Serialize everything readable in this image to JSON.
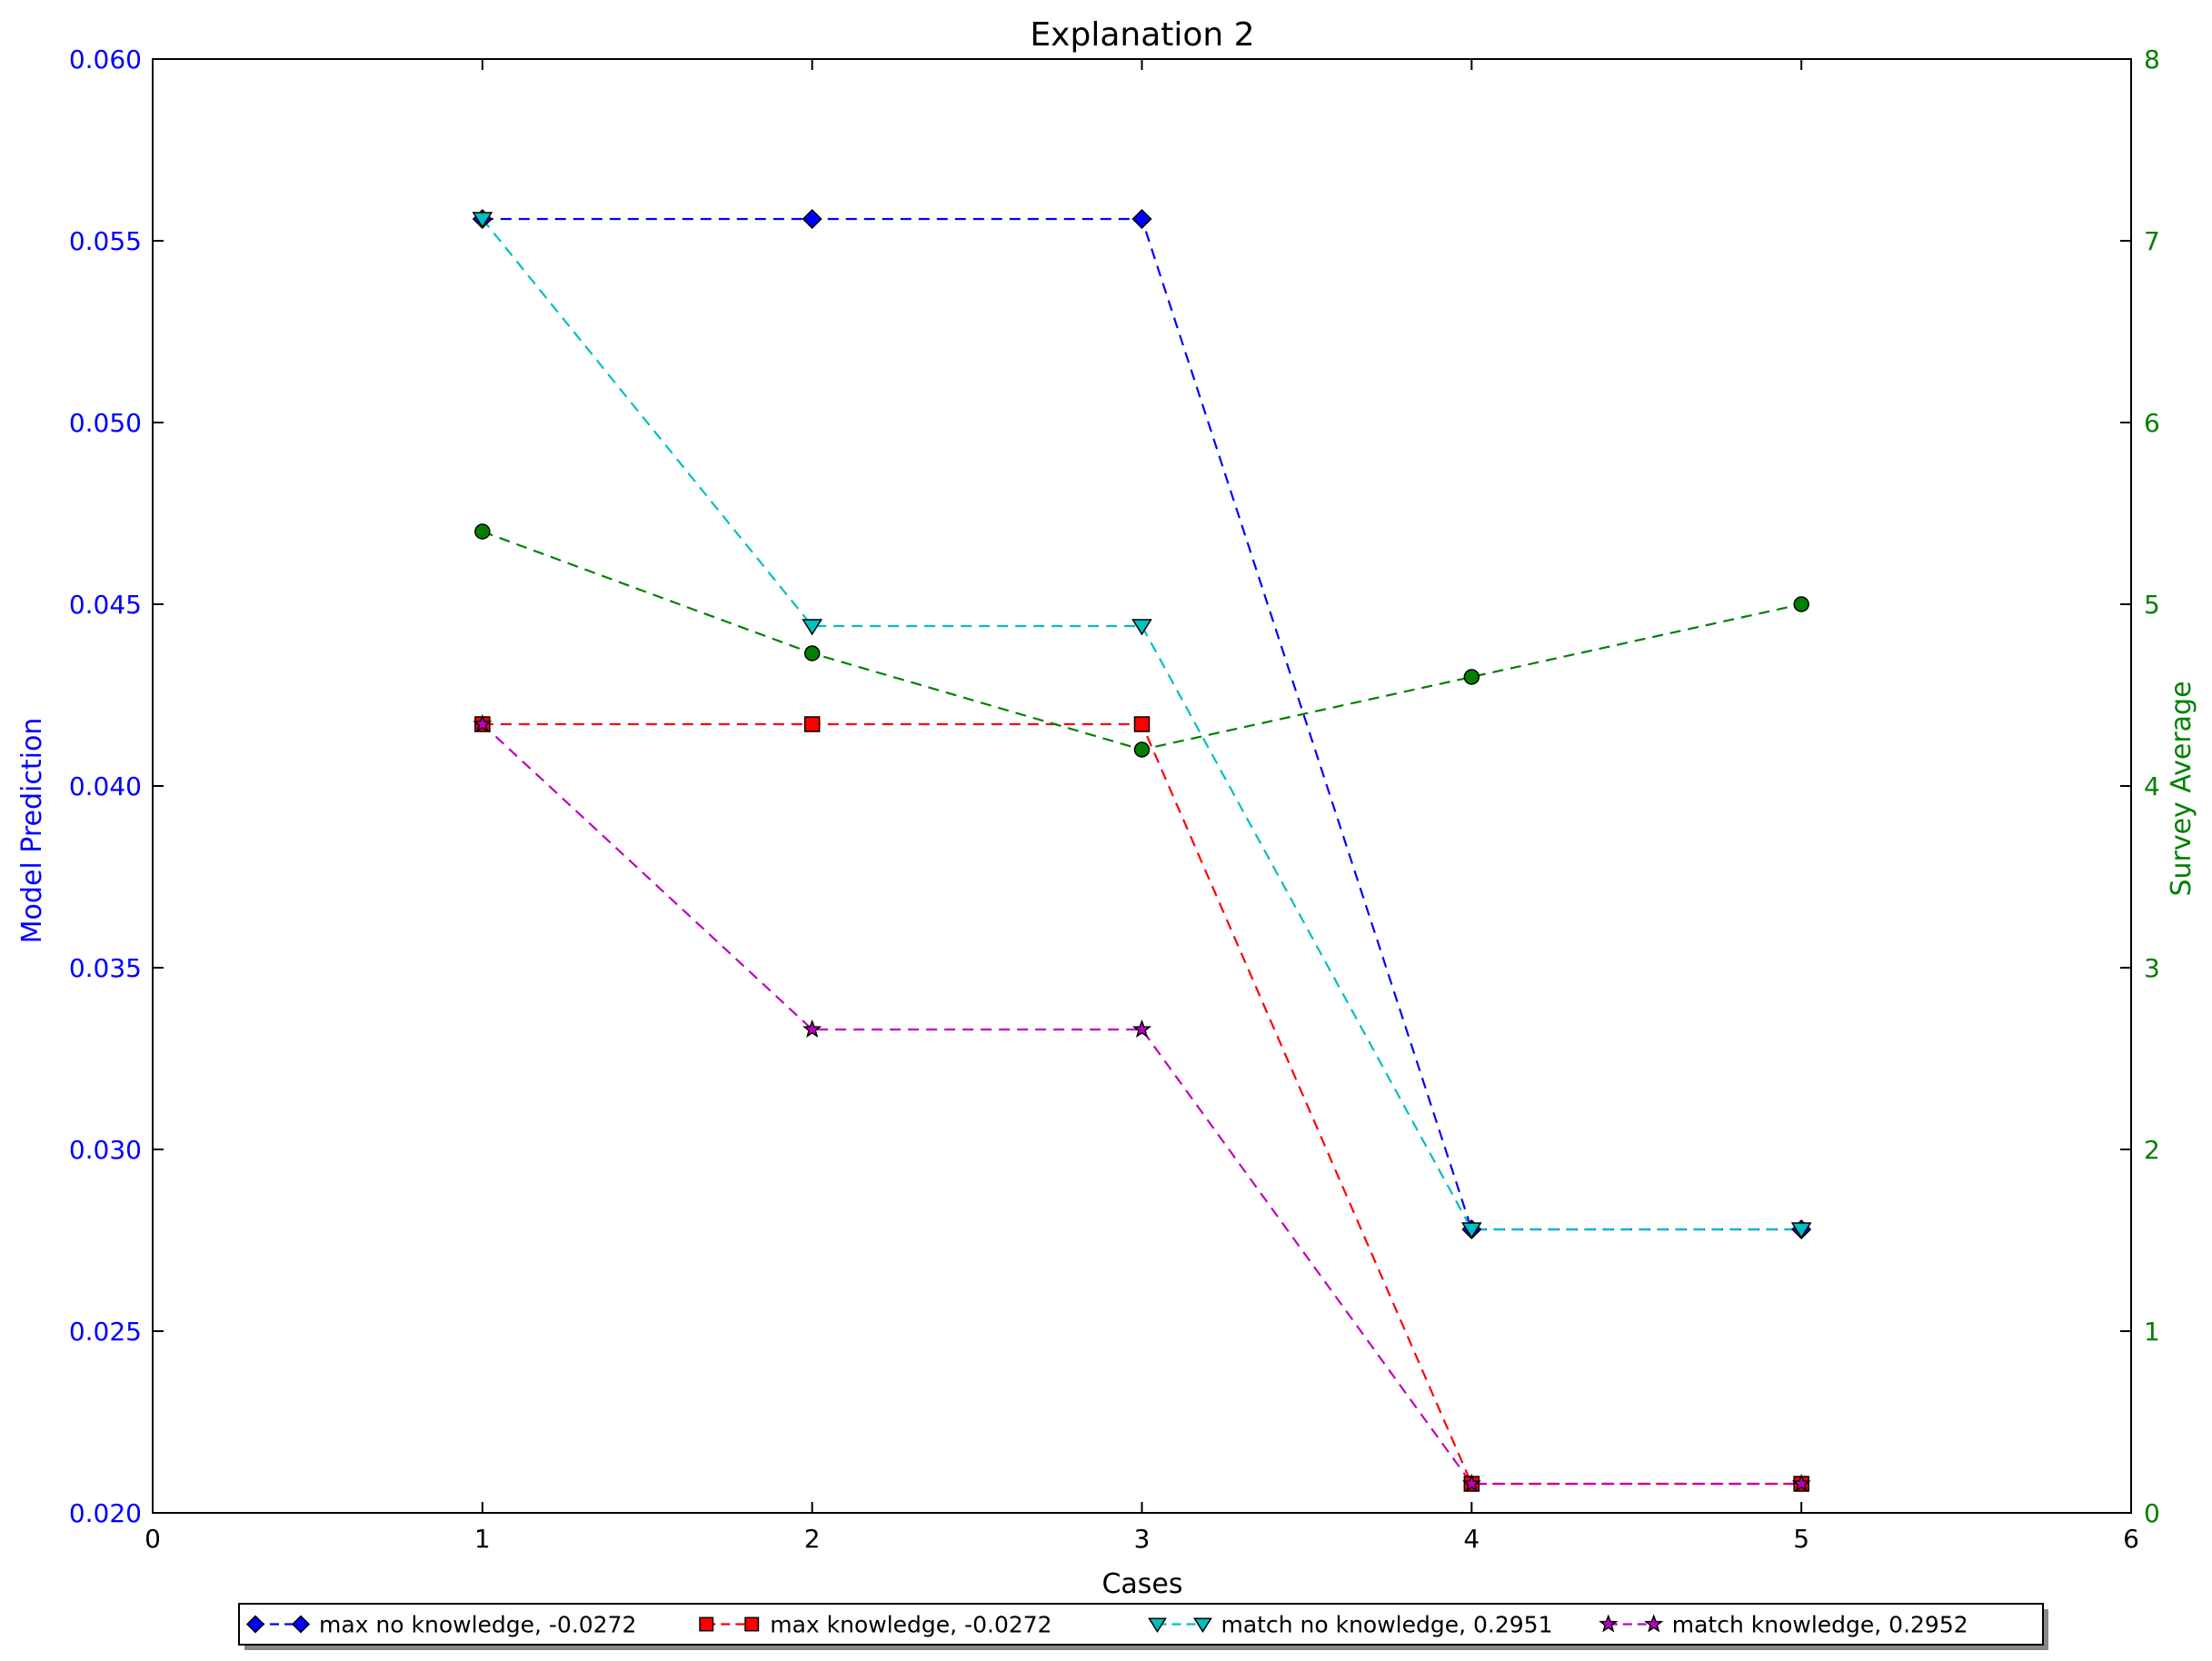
{
  "chart_data": {
    "type": "line",
    "title": "Explanation 2",
    "xlabel": "Cases",
    "ylabel_left": "Model Prediction",
    "ylabel_right": "Survey Average",
    "xlim": [
      0,
      6
    ],
    "ylim_left": [
      0.02,
      0.06
    ],
    "ylim_right": [
      0,
      8
    ],
    "x_ticks": [
      "0",
      "1",
      "2",
      "3",
      "4",
      "5",
      "6"
    ],
    "y_left_ticks": [
      "0.020",
      "0.025",
      "0.030",
      "0.035",
      "0.040",
      "0.045",
      "0.050",
      "0.055",
      "0.060"
    ],
    "y_right_ticks": [
      "0",
      "1",
      "2",
      "3",
      "4",
      "5",
      "6",
      "7",
      "8"
    ],
    "x": [
      1,
      2,
      3,
      4,
      5
    ],
    "grid": false,
    "legend_position": "bottom-center",
    "colors": {
      "left_axis": "#0000ff",
      "right_axis": "#008000"
    },
    "series": [
      {
        "name": "max no knowledge, -0.0272",
        "axis": "left",
        "color": "#0000ff",
        "marker": "diamond",
        "values": [
          0.0556,
          0.0556,
          0.0556,
          0.0278,
          0.0278
        ]
      },
      {
        "name": "max knowledge, -0.0272",
        "axis": "left",
        "color": "#ff0000",
        "marker": "square",
        "values": [
          0.0417,
          0.0417,
          0.0417,
          0.0208,
          0.0208
        ]
      },
      {
        "name": "match no knowledge, 0.2951",
        "axis": "left",
        "color": "#00bfbf",
        "marker": "triangle-down",
        "values": [
          0.0556,
          0.0444,
          0.0444,
          0.0278,
          0.0278
        ]
      },
      {
        "name": "match knowledge, 0.2952",
        "axis": "left",
        "color": "#bf00bf",
        "marker": "star",
        "values": [
          0.0417,
          0.0333,
          0.0333,
          0.0208,
          0.0208
        ]
      },
      {
        "axis": "right",
        "color": "#008000",
        "marker": "circle",
        "values": [
          5.4,
          4.73,
          4.2,
          4.6,
          5.0
        ]
      }
    ]
  }
}
